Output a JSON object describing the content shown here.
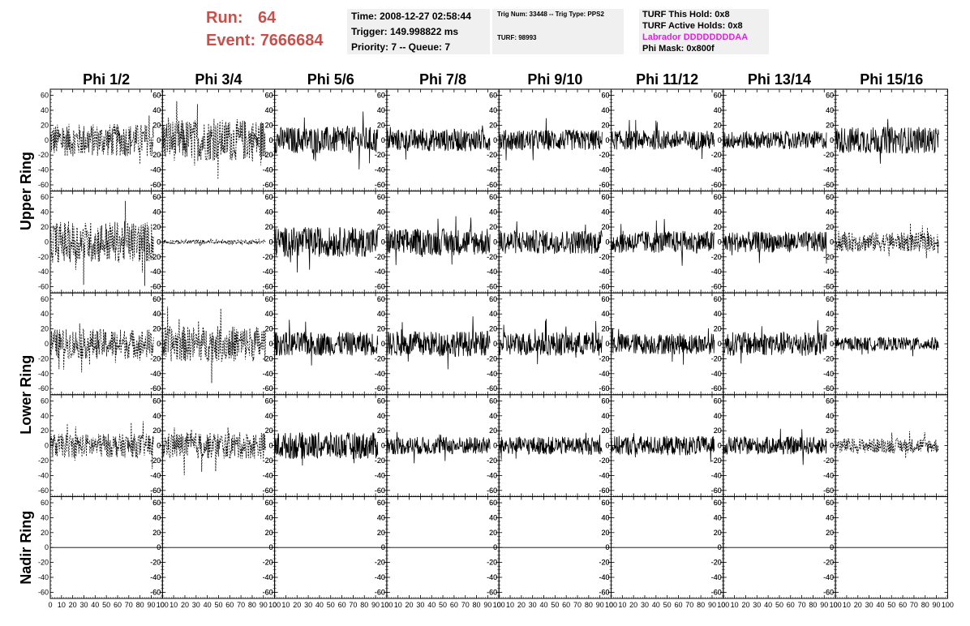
{
  "header": {
    "run_label": "Run:",
    "run_value": "64",
    "event_label": "Event:",
    "event_value": "7666684",
    "run_color": "#c8504b"
  },
  "info1": {
    "time": "Time: 2008-12-27 02:58:44",
    "trigger": "Trigger: 149.998822 ms",
    "priority": "Priority: 7 -- Queue: 7"
  },
  "info2": {
    "trig": "Trig Num: 33448 -- Trig Type: PPS2",
    "turf": "TURF: 98993"
  },
  "info3": {
    "this_hold": "TURF This Hold: 0x8",
    "active_holds": "TURF Active Holds: 0x8",
    "labrador": "Labrador DDDDDDDDAA",
    "labrador_color": "#e020e0",
    "phi_mask": "Phi Mask: 0x800f"
  },
  "chart_data": {
    "type": "line",
    "columns": [
      "Phi 1/2",
      "Phi 3/4",
      "Phi 5/6",
      "Phi 7/8",
      "Phi 9/10",
      "Phi 11/12",
      "Phi 13/14",
      "Phi 15/16"
    ],
    "rows": [
      "Upper Ring",
      "Upper Ring",
      "Lower Ring",
      "Lower Ring",
      "Nadir Ring"
    ],
    "row_labels": [
      {
        "text": "Upper Ring",
        "span_rows": [
          0,
          1
        ]
      },
      {
        "text": "Lower Ring",
        "span_rows": [
          2,
          3
        ]
      },
      {
        "text": "Nadir Ring",
        "span_rows": [
          4,
          4
        ]
      }
    ],
    "xlim": [
      0,
      100
    ],
    "ylim": [
      -65,
      65
    ],
    "x_ticks": [
      0,
      10,
      20,
      30,
      40,
      50,
      60,
      70,
      80,
      90,
      100
    ],
    "y_ticks": [
      -60,
      -40,
      -20,
      0,
      20,
      40,
      60
    ],
    "line_styles": [
      [
        "dashed",
        "dashed",
        "solid",
        "solid",
        "solid",
        "solid",
        "solid",
        "solid"
      ],
      [
        "dashed",
        "dashed",
        "solid",
        "solid",
        "solid",
        "solid",
        "solid",
        "dashed"
      ],
      [
        "dashed",
        "dashed",
        "solid",
        "solid",
        "solid",
        "solid",
        "solid",
        "solid"
      ],
      [
        "dashed",
        "dashed",
        "solid",
        "solid",
        "solid",
        "solid",
        "solid",
        "dashed"
      ],
      [
        "solid",
        "solid",
        "solid",
        "solid",
        "solid",
        "solid",
        "solid",
        "solid"
      ]
    ],
    "amplitude": [
      [
        22,
        28,
        18,
        15,
        14,
        13,
        12,
        18
      ],
      [
        28,
        3,
        20,
        18,
        16,
        15,
        14,
        13
      ],
      [
        20,
        24,
        16,
        17,
        16,
        14,
        16,
        9
      ],
      [
        16,
        18,
        18,
        12,
        12,
        13,
        12,
        10
      ],
      [
        0,
        0,
        0,
        0,
        0,
        0,
        0,
        0
      ]
    ],
    "waveform_extent": [
      92,
      92,
      92,
      92,
      92,
      92,
      92,
      92
    ]
  }
}
